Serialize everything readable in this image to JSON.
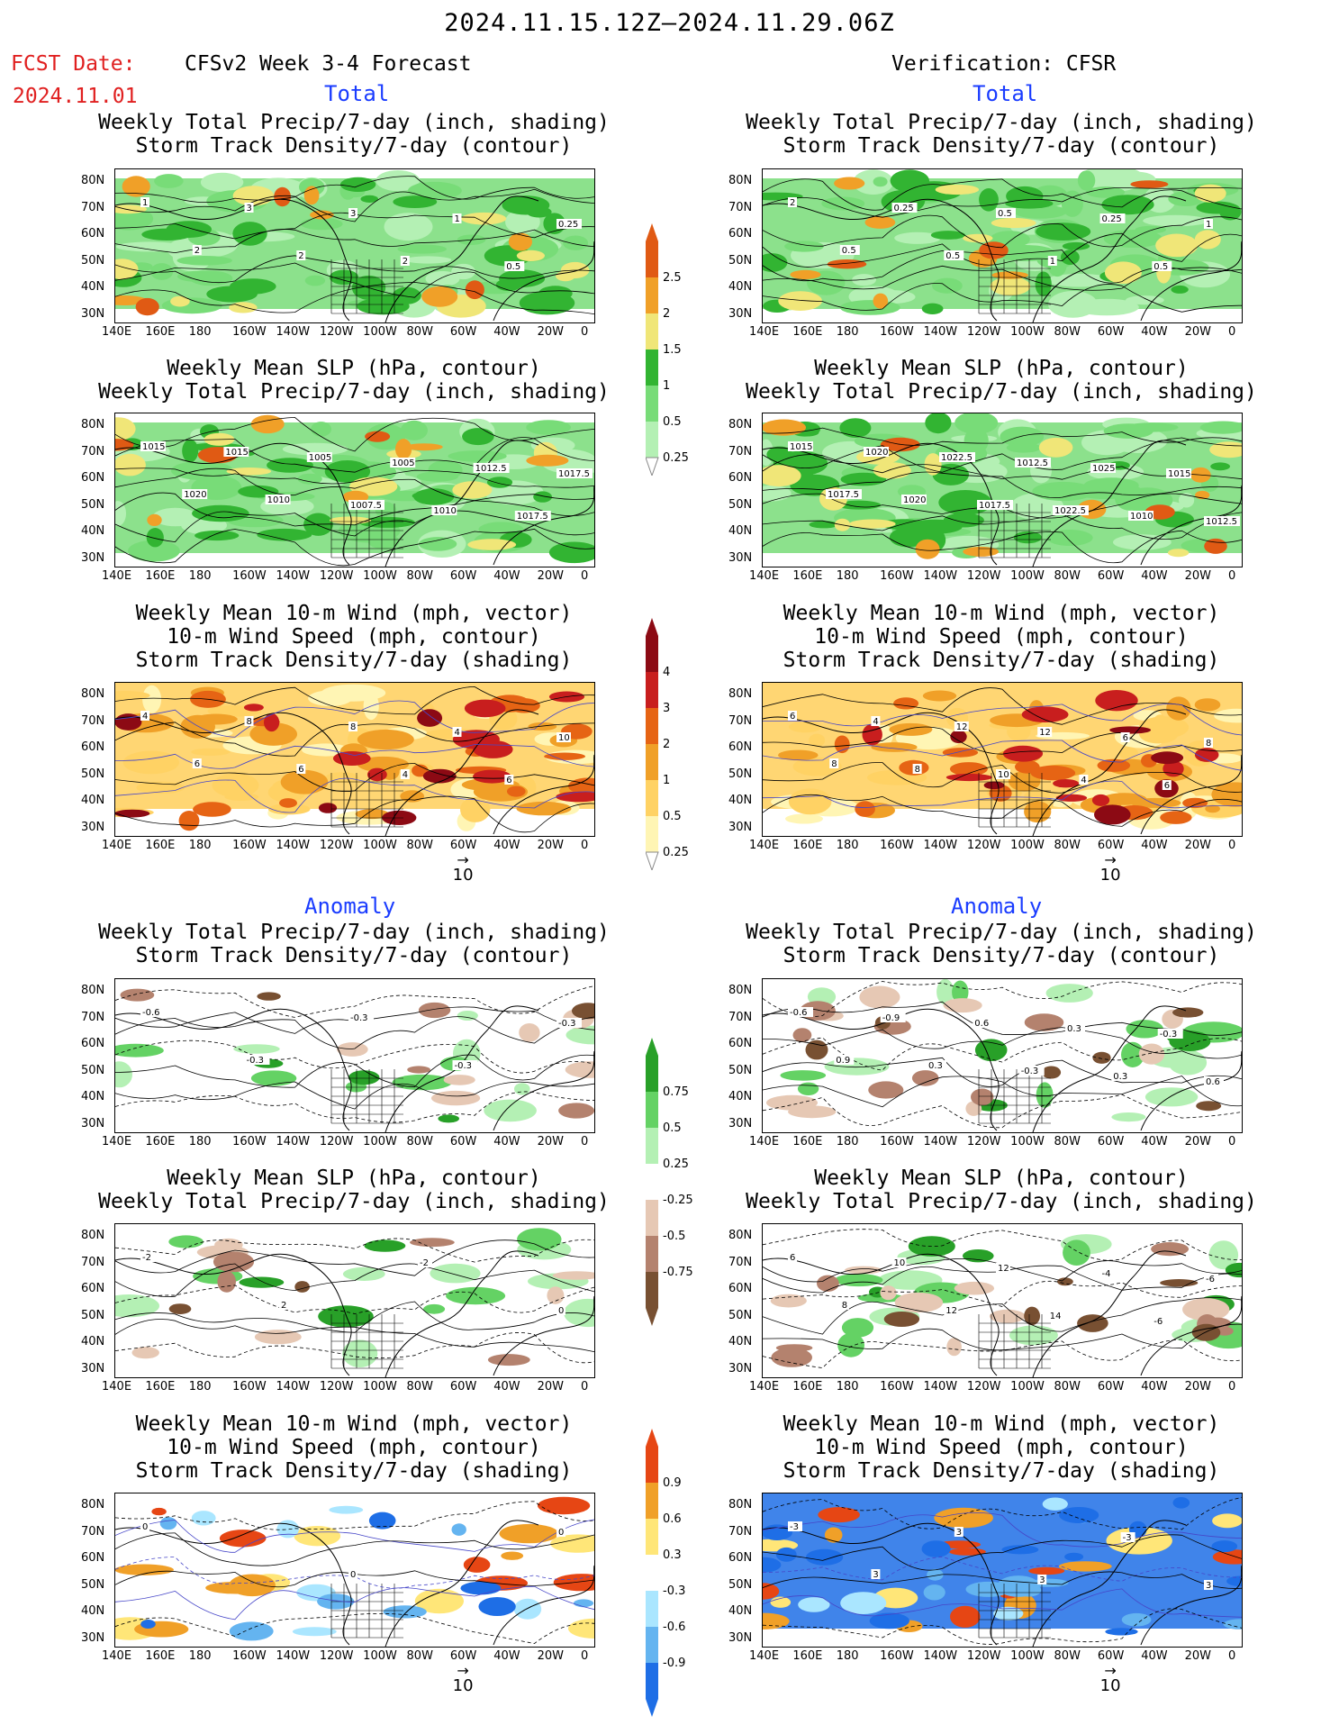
{
  "header": {
    "period": "2024.11.15.12Z–2024.11.29.06Z",
    "fcst_label": "FCST Date:",
    "fcst_date": "2024.11.01",
    "model": "CFSv2 Week 3-4 Forecast",
    "verification": "Verification: CFSR"
  },
  "sections": {
    "total": "Total",
    "anomaly": "Anomaly"
  },
  "axes": {
    "lat_ticks": [
      "80N",
      "70N",
      "60N",
      "50N",
      "40N",
      "30N"
    ],
    "lon_ticks": [
      "140E",
      "160E",
      "180",
      "160W",
      "140W",
      "120W",
      "100W",
      "80W",
      "60W",
      "40W",
      "20W",
      "0"
    ]
  },
  "vector_ref": "10",
  "colors": {
    "precip": [
      "#b4f0b4",
      "#78dc78",
      "#32b432",
      "#f0e678",
      "#f0a028",
      "#e05a14"
    ],
    "storm_total": [
      "#fff5b4",
      "#ffd264",
      "#f0a028",
      "#e66414",
      "#c81e1e",
      "#8c0a14"
    ],
    "precip_anom_neg": [
      "#e6c8b4",
      "#b4826e",
      "#785032"
    ],
    "precip_anom_pos": [
      "#b4f0b4",
      "#64d264",
      "#28a028"
    ],
    "storm_anom_pos": [
      "#ffe678",
      "#f0a028",
      "#e64614"
    ],
    "storm_anom_neg": [
      "#aae6ff",
      "#64b4f0",
      "#1e6ee6"
    ],
    "contour_blue": "#4646c8"
  },
  "chart_data": [
    {
      "type": "heatmap",
      "name": "total-precip-storm-forecast",
      "title": [
        "Weekly Total Precip/7-day (inch, shading)",
        "Storm Track Density/7-day (contour)"
      ],
      "contour_labels": [
        "1",
        "2",
        "3",
        "2",
        "3",
        "2",
        "1",
        "0.5",
        "0.25"
      ]
    },
    {
      "type": "heatmap",
      "name": "total-precip-storm-verification",
      "title": [
        "Weekly Total Precip/7-day (inch, shading)",
        "Storm Track Density/7-day (contour)"
      ],
      "contour_labels": [
        "2",
        "0.5",
        "0.25",
        "0.5",
        "0.5",
        "1",
        "0.25",
        "0.5",
        "1"
      ]
    },
    {
      "type": "heatmap",
      "name": "total-slp-forecast",
      "title": [
        "Weekly Mean SLP (hPa, contour)",
        "Weekly Total Precip/7-day (inch, shading)"
      ],
      "contour_labels": [
        "1015",
        "1020",
        "1015",
        "1010",
        "1005",
        "1007.5",
        "1005",
        "1010",
        "1012.5",
        "1017.5",
        "1017.5"
      ]
    },
    {
      "type": "heatmap",
      "name": "total-slp-verification",
      "title": [
        "Weekly Mean SLP (hPa, contour)",
        "Weekly Total Precip/7-day (inch, shading)"
      ],
      "contour_labels": [
        "1015",
        "1017.5",
        "1020",
        "1020",
        "1022.5",
        "1017.5",
        "1012.5",
        "1022.5",
        "1025",
        "1010",
        "1015",
        "1012.5"
      ]
    },
    {
      "type": "heatmap",
      "name": "total-wind-forecast",
      "title": [
        "Weekly Mean 10-m Wind (mph, vector)",
        "10-m Wind Speed (mph, contour)",
        "Storm Track Density/7-day (shading)"
      ],
      "contour_labels": [
        "4",
        "6",
        "8",
        "6",
        "8",
        "4",
        "4",
        "6",
        "10"
      ]
    },
    {
      "type": "heatmap",
      "name": "total-wind-verification",
      "title": [
        "Weekly Mean 10-m Wind (mph, vector)",
        "10-m Wind Speed (mph, contour)",
        "Storm Track Density/7-day (shading)"
      ],
      "contour_labels": [
        "6",
        "8",
        "4",
        "8",
        "12",
        "10",
        "12",
        "4",
        "6",
        "6",
        "8"
      ]
    },
    {
      "type": "heatmap",
      "name": "anom-precip-storm-forecast",
      "title": [
        "Weekly Total Precip/7-day (inch, shading)",
        "Storm Track Density/7-day (contour)"
      ],
      "contour_labels": [
        "-0.6",
        "-0.3",
        "-0.3",
        "-0.3",
        "-0.3"
      ]
    },
    {
      "type": "heatmap",
      "name": "anom-precip-storm-verification",
      "title": [
        "Weekly Total Precip/7-day (inch, shading)",
        "Storm Track Density/7-day (contour)"
      ],
      "contour_labels": [
        "-0.6",
        "0.9",
        "-0.9",
        "0.3",
        "0.6",
        "-0.3",
        "0.3",
        "0.3",
        "-0.3",
        "0.6"
      ]
    },
    {
      "type": "heatmap",
      "name": "anom-slp-forecast",
      "title": [
        "Weekly Mean SLP (hPa, contour)",
        "Weekly Total Precip/7-day (inch, shading)"
      ],
      "contour_labels": [
        "-2",
        "2",
        "-2",
        "0"
      ]
    },
    {
      "type": "heatmap",
      "name": "anom-slp-verification",
      "title": [
        "Weekly Mean SLP (hPa, contour)",
        "Weekly Total Precip/7-day (inch, shading)"
      ],
      "contour_labels": [
        "6",
        "8",
        "10",
        "12",
        "12",
        "14",
        "-4",
        "-6",
        "-6"
      ]
    },
    {
      "type": "heatmap",
      "name": "anom-wind-forecast",
      "title": [
        "Weekly Mean 10-m Wind (mph, vector)",
        "10-m Wind Speed (mph, contour)",
        "Storm Track Density/7-day (shading)"
      ],
      "contour_labels": [
        "0",
        "0",
        "0"
      ]
    },
    {
      "type": "heatmap",
      "name": "anom-wind-verification",
      "title": [
        "Weekly Mean 10-m Wind (mph, vector)",
        "10-m Wind Speed (mph, contour)",
        "Storm Track Density/7-day (shading)"
      ],
      "contour_labels": [
        "-3",
        "3",
        "3",
        "3",
        "-3",
        "3"
      ]
    }
  ],
  "colorbars": [
    {
      "name": "precip-total-colorbar",
      "labels": [
        "2.5",
        "2",
        "1.5",
        "1",
        "0.5",
        "0.25"
      ]
    },
    {
      "name": "storm-total-colorbar",
      "labels": [
        "4",
        "3",
        "2",
        "1",
        "0.5",
        "0.25"
      ]
    },
    {
      "name": "precip-anom-colorbar",
      "labels": [
        "0.75",
        "0.5",
        "0.25",
        "-0.25",
        "-0.5",
        "-0.75"
      ]
    },
    {
      "name": "storm-anom-colorbar",
      "labels": [
        "0.9",
        "0.6",
        "0.3",
        "-0.3",
        "-0.6",
        "-0.9"
      ]
    }
  ]
}
